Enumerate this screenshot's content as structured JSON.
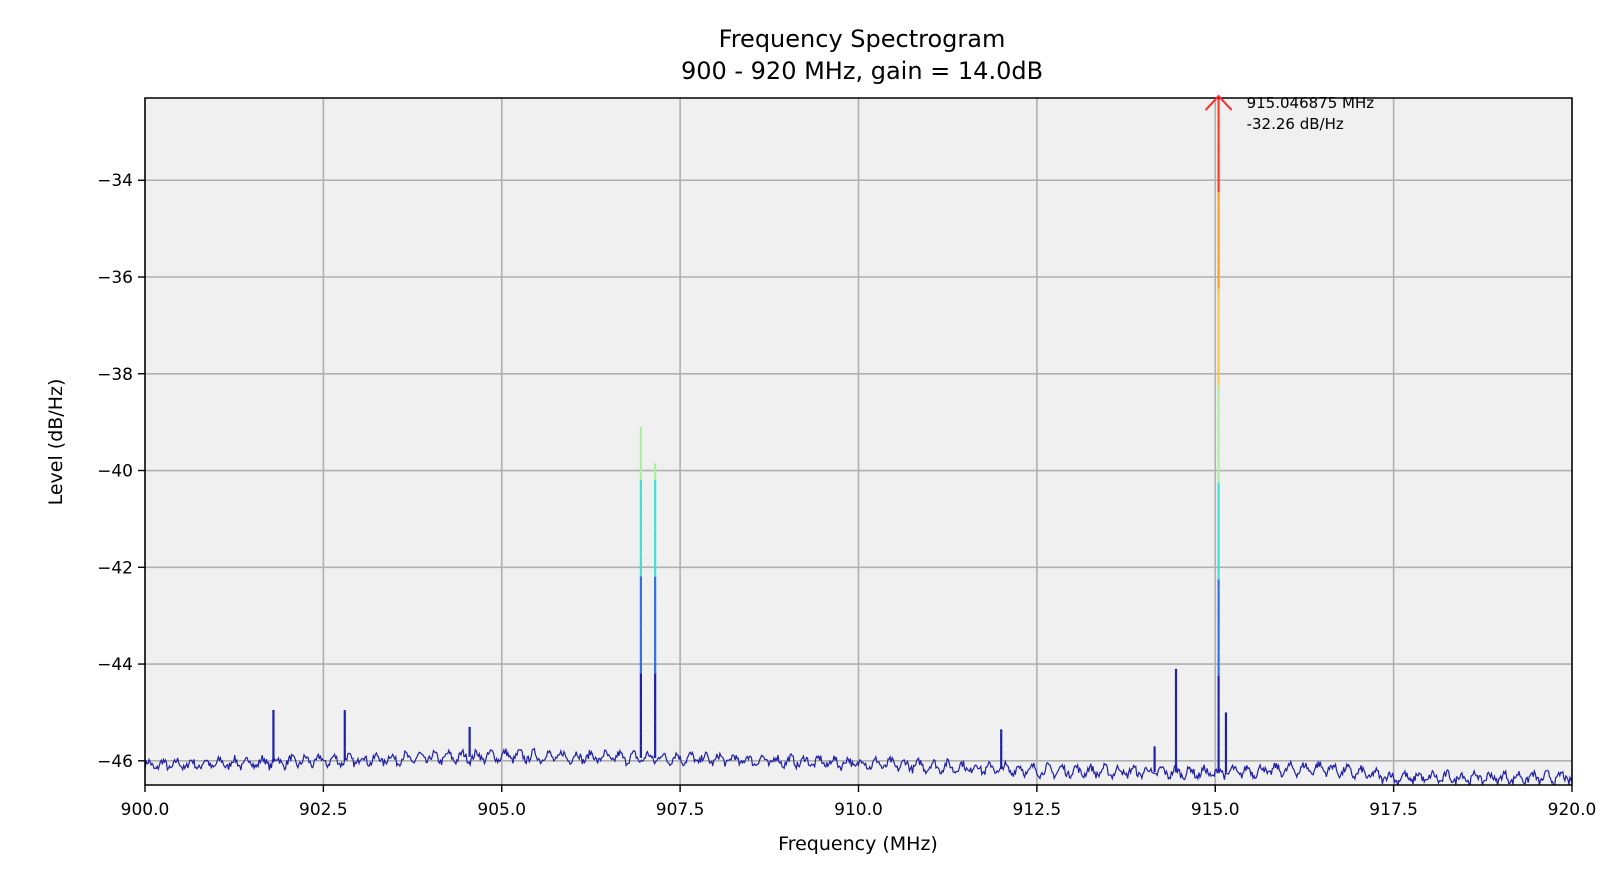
{
  "chart_data": {
    "type": "line",
    "title": "Frequency Spectrogram",
    "subtitle": "900 - 920 MHz, gain = 14.0dB",
    "xlabel": "Frequency (MHz)",
    "ylabel": "Level (dB/Hz)",
    "xlim": [
      900,
      920
    ],
    "ylim": [
      -46.5,
      -32.3
    ],
    "xticks": [
      900.0,
      902.5,
      905.0,
      907.5,
      910.0,
      912.5,
      915.0,
      917.5,
      920.0
    ],
    "xtick_labels": [
      "900.0",
      "902.5",
      "905.0",
      "907.5",
      "910.0",
      "912.5",
      "915.0",
      "917.5",
      "920.0"
    ],
    "yticks": [
      -34,
      -36,
      -38,
      -40,
      -42,
      -44,
      -46
    ],
    "ytick_labels": [
      "−34",
      "−36",
      "−38",
      "−40",
      "−42",
      "−44",
      "−46"
    ],
    "grid": true,
    "colors": {
      "background": "#f0f0f0",
      "grid": "#b0b0b0",
      "noise": "#1f1fa8",
      "arrow": "#ff2a2a"
    },
    "noise_floor": [
      {
        "x": 900.0,
        "y": -46.1
      },
      {
        "x": 902.5,
        "y": -46.0
      },
      {
        "x": 905.0,
        "y": -45.9
      },
      {
        "x": 907.5,
        "y": -45.95
      },
      {
        "x": 910.0,
        "y": -46.05
      },
      {
        "x": 912.5,
        "y": -46.2
      },
      {
        "x": 915.0,
        "y": -46.25
      },
      {
        "x": 916.5,
        "y": -46.15
      },
      {
        "x": 917.5,
        "y": -46.35
      },
      {
        "x": 920.0,
        "y": -46.35
      }
    ],
    "peaks": [
      {
        "x": 901.8,
        "y": -44.95
      },
      {
        "x": 902.8,
        "y": -44.95
      },
      {
        "x": 904.55,
        "y": -45.3
      },
      {
        "x": 906.95,
        "y": -39.1
      },
      {
        "x": 907.15,
        "y": -39.85
      },
      {
        "x": 912.0,
        "y": -45.35
      },
      {
        "x": 914.15,
        "y": -45.7
      },
      {
        "x": 914.45,
        "y": -44.1
      },
      {
        "x": 915.046875,
        "y": -32.26
      },
      {
        "x": 915.15,
        "y": -45.0
      }
    ],
    "annotation": {
      "x": 915.046875,
      "y": -32.26,
      "line1": "915.046875 MHz",
      "line2": "-32.26 dB/Hz"
    }
  }
}
